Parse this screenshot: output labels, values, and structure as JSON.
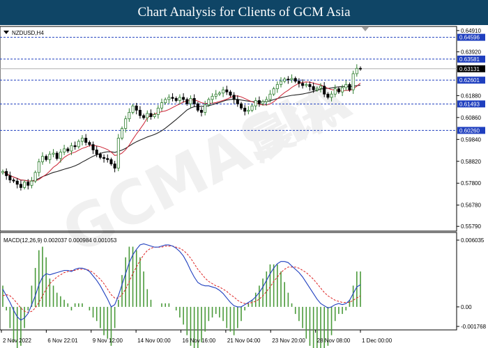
{
  "banner": {
    "title": "Chart Analysis for Clients of GCM Asia"
  },
  "chart_data": [
    {
      "type": "candlestick",
      "symbol_label": "NZDUSD,H4",
      "ylim": [
        0.557,
        0.6494
      ],
      "y_ticks": [
        "0.64910",
        "0.63920",
        "0.61880",
        "0.60860",
        "0.59840",
        "0.58820",
        "0.57800",
        "0.56780",
        "0.55790"
      ],
      "current_price": {
        "value": 0.63131,
        "label": "0.63131",
        "color": "#000000"
      },
      "levels": [
        {
          "value": 0.64596,
          "label": "0.64596",
          "color": "#1f3fbf"
        },
        {
          "value": 0.63581,
          "label": "0.63581",
          "color": "#1f3fbf"
        },
        {
          "value": 0.62601,
          "label": "0.62601",
          "color": "#1f3fbf"
        },
        {
          "value": 0.61493,
          "label": "0.61493",
          "color": "#1f3fbf"
        },
        {
          "value": 0.6026,
          "label": "0.60260",
          "color": "#1f3fbf"
        }
      ],
      "x_ticks": [
        "2 Nov 2022",
        "6 Nov 22:01",
        "9 Nov 12:00",
        "14 Nov 00:00",
        "16 Nov 16:00",
        "21 Nov 04:00",
        "23 Nov 20:00",
        "28 Nov 08:00",
        "1 Dec 00:00"
      ],
      "close": [
        0.5835,
        0.5815,
        0.5795,
        0.579,
        0.5775,
        0.576,
        0.5785,
        0.577,
        0.579,
        0.583,
        0.588,
        0.5905,
        0.589,
        0.5915,
        0.592,
        0.5895,
        0.5925,
        0.594,
        0.593,
        0.5955,
        0.595,
        0.5975,
        0.599,
        0.597,
        0.596,
        0.5935,
        0.5915,
        0.59,
        0.5895,
        0.589,
        0.587,
        0.585,
        0.599,
        0.6035,
        0.608,
        0.611,
        0.614,
        0.612,
        0.6095,
        0.6085,
        0.6105,
        0.609,
        0.61,
        0.613,
        0.6155,
        0.617,
        0.618,
        0.6175,
        0.6165,
        0.618,
        0.617,
        0.615,
        0.6175,
        0.615,
        0.612,
        0.611,
        0.6145,
        0.617,
        0.6185,
        0.6195,
        0.62,
        0.6215,
        0.6205,
        0.619,
        0.617,
        0.615,
        0.613,
        0.6115,
        0.612,
        0.614,
        0.6165,
        0.615,
        0.616,
        0.617,
        0.6195,
        0.622,
        0.624,
        0.6255,
        0.6265,
        0.6262,
        0.6268,
        0.6255,
        0.6245,
        0.6235,
        0.624,
        0.623,
        0.6215,
        0.6222,
        0.6232,
        0.6195,
        0.618,
        0.6195,
        0.622,
        0.6205,
        0.6225,
        0.624,
        0.6215,
        0.629,
        0.6315,
        0.6313
      ],
      "sma_fast_color": "#cc2233",
      "sma_slow_color": "#222222",
      "up_color": "#2d7d2d",
      "down_color": "#000000"
    },
    {
      "type": "macd",
      "label": "MACD(12,26,9) 0.002037 0.000984 0.001053",
      "ylim": [
        -0.001768,
        0.006035
      ],
      "y_ticks": [
        "0.006035",
        "0.00",
        "-0.001768"
      ],
      "series": [
        {
          "name": "MACD",
          "color": "#1f3fbf",
          "values": [
            0.0016,
            0.001,
            0.0004,
            -0.0003,
            -0.0009,
            -0.0012,
            -0.001,
            -0.0006,
            0.0002,
            0.001,
            0.002,
            0.0027,
            0.003,
            0.0029,
            0.003,
            0.0031,
            0.0032,
            0.0033,
            0.0033,
            0.0032,
            0.0034,
            0.0035,
            0.0035,
            0.0034,
            0.0032,
            0.0028,
            0.0024,
            0.0019,
            0.0013,
            0.0007,
            0.0,
            0.0002,
            0.001,
            0.002,
            0.003,
            0.004,
            0.0047,
            0.0052,
            0.0056,
            0.0057,
            0.0056,
            0.0055,
            0.0054,
            0.0054,
            0.0055,
            0.0056,
            0.0056,
            0.0055,
            0.0053,
            0.005,
            0.0046,
            0.004,
            0.0033,
            0.0027,
            0.0022,
            0.002,
            0.0019,
            0.0019,
            0.0018,
            0.0017,
            0.0015,
            0.0012,
            0.0008,
            0.0004,
            0.0001,
            0.0,
            0.0,
            0.0002,
            0.0004,
            0.0006,
            0.0009,
            0.0013,
            0.0018,
            0.0024,
            0.003,
            0.0035,
            0.0039,
            0.0041,
            0.0041,
            0.004,
            0.0037,
            0.0034,
            0.0031,
            0.0027,
            0.0022,
            0.0017,
            0.0012,
            0.0007,
            0.0003,
            0.0001,
            -0.0001,
            0.0,
            0.0002,
            0.0003,
            0.0002,
            0.0003,
            0.0006,
            0.0012,
            0.0018,
            0.002
          ]
        },
        {
          "name": "Signal",
          "color": "#dd2222",
          "values": [
            0.001,
            0.0011,
            0.001,
            0.0007,
            0.0003,
            -0.0001,
            -0.0004,
            -0.0005,
            -0.0004,
            -0.0001,
            0.0004,
            0.001,
            0.0016,
            0.0021,
            0.0024,
            0.0027,
            0.0029,
            0.0031,
            0.0032,
            0.0033,
            0.0033,
            0.0034,
            0.0034,
            0.0034,
            0.0033,
            0.0031,
            0.0028,
            0.0025,
            0.0021,
            0.0016,
            0.0011,
            0.0008,
            0.0008,
            0.0011,
            0.0016,
            0.0023,
            0.003,
            0.0036,
            0.0042,
            0.0047,
            0.0051,
            0.0053,
            0.0054,
            0.0054,
            0.0054,
            0.0055,
            0.0055,
            0.0055,
            0.0054,
            0.0053,
            0.0051,
            0.0048,
            0.0044,
            0.0039,
            0.0034,
            0.003,
            0.0026,
            0.0023,
            0.0021,
            0.0019,
            0.0018,
            0.0016,
            0.0014,
            0.0011,
            0.0009,
            0.0006,
            0.0004,
            0.0003,
            0.0003,
            0.0004,
            0.0005,
            0.0007,
            0.001,
            0.0014,
            0.0018,
            0.0023,
            0.0027,
            0.0031,
            0.0034,
            0.0036,
            0.0036,
            0.0036,
            0.0035,
            0.0033,
            0.0031,
            0.0028,
            0.0025,
            0.0021,
            0.0017,
            0.0013,
            0.001,
            0.0008,
            0.0006,
            0.0005,
            0.0004,
            0.0004,
            0.0004,
            0.0006,
            0.0008,
            0.001
          ]
        },
        {
          "name": "Histogram",
          "color": "#4a9a3a"
        }
      ]
    }
  ],
  "watermark": {
    "brand": "GCMASIA",
    "chinese": "晨讯"
  }
}
